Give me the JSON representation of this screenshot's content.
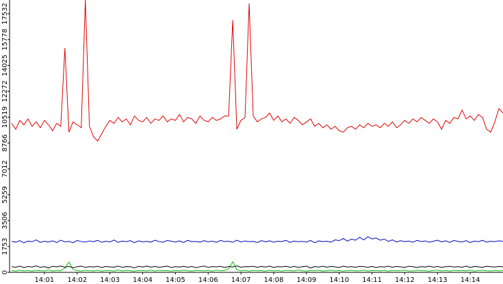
{
  "chart_data": {
    "type": "line",
    "categories": [
      null,
      null,
      null,
      null,
      null,
      null,
      null,
      null,
      "14:01",
      null,
      null,
      null,
      null,
      null,
      null,
      null,
      "14:02",
      null,
      null,
      null,
      null,
      null,
      null,
      null,
      "14:03",
      null,
      null,
      null,
      null,
      null,
      null,
      null,
      "14:04",
      null,
      null,
      null,
      null,
      null,
      null,
      null,
      "14:05",
      null,
      null,
      null,
      null,
      null,
      null,
      null,
      "14:06",
      null,
      null,
      null,
      null,
      null,
      null,
      null,
      "14:07",
      null,
      null,
      null,
      null,
      null,
      null,
      null,
      "14:08",
      null,
      null,
      null,
      null,
      null,
      null,
      null,
      "14:09",
      null,
      null,
      null,
      null,
      null,
      null,
      null,
      "14:10",
      null,
      null,
      null,
      null,
      null,
      null,
      null,
      "14:11",
      null,
      null,
      null,
      null,
      null,
      null,
      null,
      "14:12",
      null,
      null,
      null,
      null,
      null,
      null,
      null,
      "14:13",
      null,
      null,
      null,
      null,
      null,
      null,
      null,
      "14:14",
      null,
      null,
      null,
      null,
      null,
      null,
      null,
      null
    ],
    "series": [
      {
        "color": "#e00000",
        "values": [
          10100,
          9700,
          10300,
          10000,
          10400,
          9900,
          10200,
          9800,
          10300,
          10000,
          9600,
          10100,
          9900,
          15200,
          9500,
          10200,
          10000,
          9800,
          18460,
          9900,
          9200,
          8900,
          9400,
          9900,
          10300,
          10100,
          10500,
          10200,
          10400,
          10000,
          10600,
          10300,
          10200,
          10500,
          10100,
          10400,
          10300,
          10600,
          10200,
          10400,
          10300,
          10700,
          10200,
          10500,
          10400,
          10100,
          10600,
          10300,
          10200,
          10500,
          10300,
          10400,
          10600,
          10600,
          17100,
          9700,
          10300,
          10500,
          18230,
          10600,
          10200,
          10400,
          10500,
          10800,
          10300,
          10600,
          10200,
          10400,
          10100,
          10500,
          10300,
          10000,
          10200,
          10400,
          9900,
          10100,
          9800,
          10000,
          9700,
          9900,
          9600,
          9500,
          9800,
          9900,
          9700,
          10000,
          9800,
          10100,
          9900,
          10000,
          9800,
          10100,
          9900,
          10200,
          9800,
          10000,
          10300,
          10100,
          10400,
          10200,
          10500,
          10300,
          10100,
          10400,
          10200,
          9700,
          10300,
          10100,
          10500,
          10400,
          11000,
          10400,
          10600,
          10300,
          10700,
          10500,
          9700,
          9500,
          10200,
          11100,
          10800
        ]
      },
      {
        "color": "#0000c0",
        "values": [
          2100,
          2050,
          2150,
          2000,
          2120,
          2080,
          2200,
          2030,
          2110,
          2060,
          2140,
          2020,
          2180,
          2070,
          2100,
          2010,
          2160,
          2090,
          2050,
          2130,
          2080,
          2170,
          2040,
          2110,
          2060,
          2190,
          2030,
          2120,
          2080,
          2150,
          2010,
          2140,
          2070,
          2100,
          2050,
          2180,
          2090,
          2040,
          2160,
          2110,
          2060,
          2130,
          2020,
          2170,
          2080,
          2100,
          2050,
          2150,
          2070,
          2120,
          2030,
          2160,
          2090,
          2110,
          2040,
          2180,
          2060,
          2130,
          2080,
          2100,
          2020,
          2150,
          2070,
          2140,
          2050,
          2110,
          2090,
          2170,
          2030,
          2120,
          2080,
          2100,
          2060,
          2160,
          2010,
          2130,
          2090,
          2110,
          2050,
          2200,
          2150,
          2300,
          2120,
          2250,
          2180,
          2380,
          2200,
          2420,
          2260,
          2330,
          2180,
          2250,
          2100,
          2200,
          2060,
          2150,
          2080,
          2120,
          2040,
          2170,
          2090,
          2130,
          2050,
          2110,
          2180,
          2070,
          2140,
          2030,
          2160,
          2100,
          2060,
          2150,
          2020,
          2120,
          2080,
          2170,
          2050,
          2110,
          2090,
          2140,
          2100
        ]
      },
      {
        "color": "#000000",
        "values": [
          380,
          350,
          420,
          330,
          400,
          360,
          440,
          340,
          390,
          300,
          410,
          370,
          430,
          350,
          400,
          320,
          380,
          420,
          340,
          390,
          360,
          410,
          330,
          400,
          370,
          350,
          420,
          340,
          390,
          380,
          300,
          410,
          360,
          430,
          350,
          400,
          340,
          380,
          420,
          330,
          390,
          360,
          410,
          350,
          400,
          320,
          380,
          430,
          340,
          390,
          370,
          410,
          330,
          400,
          360,
          440,
          350,
          390,
          380,
          410,
          340,
          400,
          360,
          420,
          330,
          390,
          370,
          410,
          350,
          400,
          340,
          380,
          420,
          300,
          390,
          360,
          410,
          350,
          400,
          370,
          330,
          420,
          360,
          390,
          340,
          410,
          380,
          350,
          400,
          330,
          390,
          360,
          420,
          350,
          400,
          370,
          340,
          410,
          380,
          330,
          390,
          360,
          420,
          350,
          400,
          340,
          380,
          410,
          360,
          390,
          350,
          420,
          330,
          400,
          370,
          340,
          410,
          380,
          360,
          400,
          370
        ]
      },
      {
        "color": "#00c000",
        "values": [
          120,
          90,
          150,
          100,
          130,
          80,
          140,
          110,
          100,
          160,
          90,
          130,
          110,
          300,
          700,
          200,
          120,
          90,
          140,
          110,
          100,
          150,
          80,
          130,
          120,
          90,
          160,
          100,
          140,
          110,
          80,
          130,
          120,
          100,
          150,
          90,
          140,
          110,
          120,
          80,
          130,
          100,
          150,
          110,
          90,
          140,
          120,
          100,
          130,
          80,
          150,
          110,
          120,
          250,
          720,
          180,
          100,
          140,
          90,
          130,
          110,
          120,
          80,
          150,
          100,
          130,
          90,
          140,
          120,
          100,
          160,
          110,
          80,
          130,
          120,
          140,
          90,
          110,
          150,
          100,
          130,
          80,
          120,
          140,
          100,
          110,
          150,
          90,
          130,
          120,
          100,
          140,
          80,
          130,
          110,
          120,
          150,
          90,
          100,
          140,
          120,
          110,
          80,
          130,
          150,
          100,
          120,
          90,
          140,
          110,
          130,
          100,
          150,
          80,
          120,
          140,
          110,
          90,
          130,
          100,
          120
        ]
      }
    ],
    "ylim": [
      0,
      18460
    ],
    "yticks": [
      0,
      1753,
      3506,
      5259,
      7012,
      8766,
      10519,
      12272,
      14025,
      15778,
      17532
    ]
  }
}
